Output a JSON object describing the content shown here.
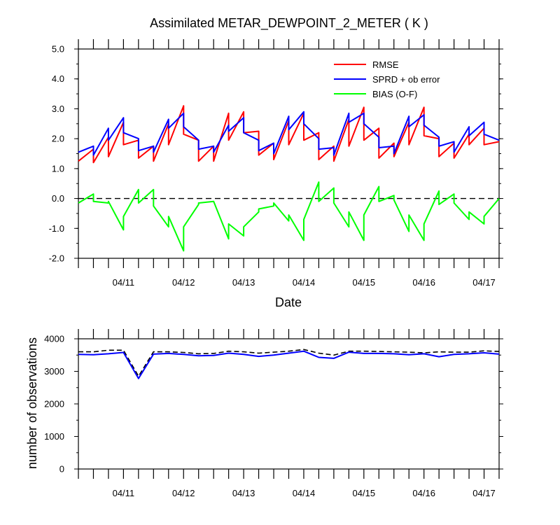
{
  "chart_data": [
    {
      "type": "line",
      "title": "Assimilated METAR_DEWPOINT_2_METER ( K )",
      "xlabel": "Date",
      "ylabel": "",
      "x_ticks": [
        {
          "t": 1.0,
          "label": "04/11"
        },
        {
          "t": 2.0,
          "label": "04/12"
        },
        {
          "t": 3.0,
          "label": "04/13"
        },
        {
          "t": 4.0,
          "label": "04/14"
        },
        {
          "t": 5.0,
          "label": "04/15"
        },
        {
          "t": 6.0,
          "label": "04/16"
        },
        {
          "t": 7.0,
          "label": "04/17"
        }
      ],
      "xlim": [
        0.25,
        7.25
      ],
      "ylim": [
        -2.0,
        5.0
      ],
      "y_ticks": [
        -2.0,
        -1.0,
        0.0,
        1.0,
        2.0,
        3.0,
        4.0,
        5.0
      ],
      "y_tick_labels": [
        "-2.0",
        "-1.0",
        "0.0",
        "1.0",
        "2.0",
        "3.0",
        "4.0",
        "5.0"
      ],
      "zero_line": true,
      "legend_position": "top-right",
      "series": [
        {
          "name": "RMSE",
          "color": "#ff0000",
          "x": [
            0.25,
            0.5,
            0.5,
            0.75,
            0.75,
            1.0,
            1.0,
            1.25,
            1.25,
            1.5,
            1.5,
            1.75,
            1.75,
            2.0,
            2.0,
            2.25,
            2.25,
            2.5,
            2.5,
            2.75,
            2.75,
            3.0,
            3.0,
            3.25,
            3.25,
            3.5,
            3.5,
            3.75,
            3.75,
            4.0,
            4.0,
            4.25,
            4.25,
            4.5,
            4.5,
            4.75,
            4.75,
            5.0,
            5.0,
            5.25,
            5.25,
            5.5,
            5.5,
            5.75,
            5.75,
            6.0,
            6.0,
            6.25,
            6.25,
            6.5,
            6.5,
            6.75,
            6.75,
            7.0,
            7.0,
            7.25
          ],
          "values": [
            1.25,
            1.65,
            1.2,
            2.05,
            1.4,
            2.55,
            1.8,
            1.95,
            1.35,
            1.75,
            1.25,
            2.5,
            1.8,
            3.1,
            2.15,
            1.95,
            1.25,
            1.75,
            1.25,
            2.85,
            1.95,
            2.9,
            2.2,
            2.25,
            1.45,
            1.85,
            1.3,
            2.6,
            1.8,
            2.85,
            1.95,
            2.2,
            1.3,
            1.75,
            1.25,
            2.65,
            1.75,
            3.05,
            1.95,
            2.35,
            1.35,
            1.85,
            1.4,
            2.55,
            1.8,
            3.05,
            2.1,
            2.0,
            1.4,
            1.85,
            1.35,
            2.15,
            1.8,
            2.35,
            1.8,
            1.9
          ]
        },
        {
          "name": "SPRD + ob error",
          "color": "#0000ff",
          "x": [
            0.25,
            0.5,
            0.5,
            0.75,
            0.75,
            1.0,
            1.0,
            1.25,
            1.25,
            1.5,
            1.5,
            1.75,
            1.75,
            2.0,
            2.0,
            2.25,
            2.25,
            2.5,
            2.5,
            2.75,
            2.75,
            3.0,
            3.0,
            3.25,
            3.25,
            3.5,
            3.5,
            3.75,
            3.75,
            4.0,
            4.0,
            4.25,
            4.25,
            4.5,
            4.5,
            4.75,
            4.75,
            5.0,
            5.0,
            5.25,
            5.25,
            5.5,
            5.5,
            5.75,
            5.75,
            6.0,
            6.0,
            6.25,
            6.25,
            6.5,
            6.5,
            6.75,
            6.75,
            7.0,
            7.0,
            7.25
          ],
          "values": [
            1.55,
            1.75,
            1.45,
            2.35,
            1.95,
            2.7,
            2.2,
            2.0,
            1.6,
            1.75,
            1.55,
            2.65,
            2.35,
            2.85,
            2.4,
            1.95,
            1.65,
            1.75,
            1.55,
            2.45,
            2.25,
            2.7,
            2.2,
            1.95,
            1.6,
            1.85,
            1.5,
            2.75,
            2.3,
            2.9,
            2.5,
            2.0,
            1.65,
            1.7,
            1.45,
            2.85,
            2.55,
            2.85,
            2.5,
            2.05,
            1.7,
            1.75,
            1.5,
            2.75,
            2.4,
            2.8,
            2.45,
            2.05,
            1.75,
            1.9,
            1.55,
            2.4,
            2.1,
            2.55,
            2.15,
            1.95
          ]
        },
        {
          "name": "BIAS (O-F)",
          "color": "#00ff00",
          "x": [
            0.25,
            0.5,
            0.5,
            0.75,
            0.75,
            1.0,
            1.0,
            1.25,
            1.25,
            1.5,
            1.5,
            1.75,
            1.75,
            2.0,
            2.0,
            2.25,
            2.25,
            2.5,
            2.5,
            2.75,
            2.75,
            3.0,
            3.0,
            3.25,
            3.25,
            3.5,
            3.5,
            3.75,
            3.75,
            4.0,
            4.0,
            4.25,
            4.25,
            4.5,
            4.5,
            4.75,
            4.75,
            5.0,
            5.0,
            5.25,
            5.25,
            5.5,
            5.5,
            5.75,
            5.75,
            6.0,
            6.0,
            6.25,
            6.25,
            6.5,
            6.5,
            6.75,
            6.75,
            7.0,
            7.0,
            7.25
          ],
          "values": [
            -0.15,
            0.15,
            -0.1,
            -0.15,
            -0.1,
            -1.05,
            -0.6,
            0.3,
            -0.15,
            0.3,
            -0.25,
            -0.95,
            -0.6,
            -1.75,
            -0.95,
            -0.2,
            -0.15,
            -0.1,
            -0.1,
            -1.35,
            -0.85,
            -1.25,
            -0.95,
            -0.45,
            -0.35,
            -0.25,
            -0.15,
            -0.75,
            -0.55,
            -1.4,
            -0.7,
            0.55,
            -0.1,
            0.35,
            -0.15,
            -0.95,
            -0.45,
            -1.4,
            -0.55,
            0.4,
            -0.1,
            0.1,
            -0.05,
            -1.1,
            -0.55,
            -1.4,
            -0.85,
            0.25,
            -0.2,
            0.15,
            -0.15,
            -0.7,
            -0.45,
            -0.85,
            -0.6,
            0.0
          ]
        }
      ]
    },
    {
      "type": "line",
      "title": "",
      "xlabel": "",
      "ylabel": "number of observations",
      "x_ticks": [
        {
          "t": 1.0,
          "label": "04/11"
        },
        {
          "t": 2.0,
          "label": "04/12"
        },
        {
          "t": 3.0,
          "label": "04/13"
        },
        {
          "t": 4.0,
          "label": "04/14"
        },
        {
          "t": 5.0,
          "label": "04/15"
        },
        {
          "t": 6.0,
          "label": "04/16"
        },
        {
          "t": 7.0,
          "label": "04/17"
        }
      ],
      "xlim": [
        0.25,
        7.25
      ],
      "ylim": [
        0,
        4000
      ],
      "y_ticks": [
        0,
        1000,
        2000,
        3000,
        4000
      ],
      "y_tick_labels": [
        "0",
        "1000",
        "2000",
        "3000",
        "4000"
      ],
      "series": [
        {
          "name": "",
          "color": "#000000",
          "dashed": true,
          "x": [
            0.25,
            0.5,
            0.75,
            1.0,
            1.25,
            1.5,
            1.75,
            2.0,
            2.25,
            2.5,
            2.75,
            3.0,
            3.25,
            3.5,
            3.75,
            4.0,
            4.25,
            4.5,
            4.75,
            5.0,
            5.25,
            5.5,
            5.75,
            6.0,
            6.25,
            6.5,
            6.75,
            7.0,
            7.25
          ],
          "values": [
            3600,
            3600,
            3650,
            3650,
            2850,
            3600,
            3600,
            3580,
            3540,
            3550,
            3620,
            3600,
            3560,
            3590,
            3620,
            3670,
            3560,
            3500,
            3620,
            3620,
            3610,
            3600,
            3590,
            3570,
            3600,
            3590,
            3590,
            3630,
            3610
          ]
        },
        {
          "name": "",
          "color": "#0000ff",
          "dashed": false,
          "x": [
            0.25,
            0.5,
            0.75,
            1.0,
            1.25,
            1.5,
            1.75,
            2.0,
            2.25,
            2.5,
            2.75,
            3.0,
            3.25,
            3.5,
            3.75,
            4.0,
            4.25,
            4.5,
            4.75,
            5.0,
            5.25,
            5.5,
            5.75,
            6.0,
            6.25,
            6.5,
            6.75,
            7.0,
            7.25
          ],
          "values": [
            3520,
            3510,
            3540,
            3580,
            2780,
            3530,
            3550,
            3520,
            3480,
            3490,
            3560,
            3520,
            3460,
            3500,
            3560,
            3620,
            3430,
            3400,
            3590,
            3550,
            3550,
            3540,
            3510,
            3540,
            3450,
            3520,
            3540,
            3570,
            3530
          ]
        }
      ]
    }
  ]
}
